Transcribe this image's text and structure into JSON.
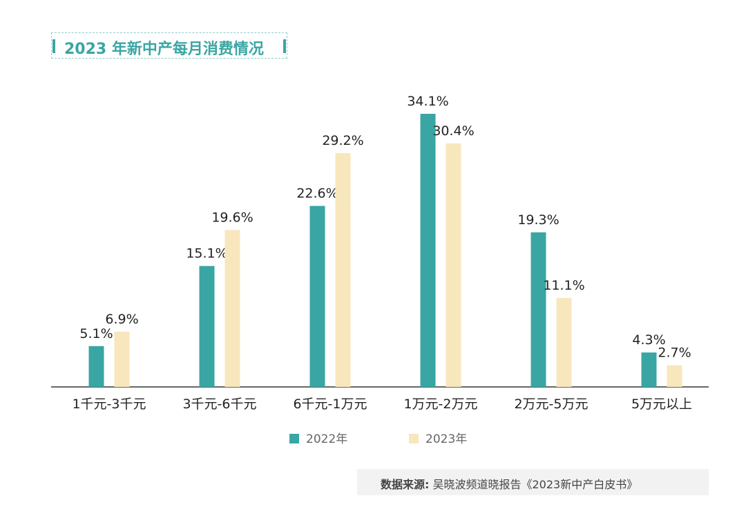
{
  "title": "2023 年新中产每月消费情况",
  "source": {
    "label": "数据来源:",
    "text": "吴晓波频道晓报告《2023新中产白皮书》"
  },
  "colors": {
    "series_2022": "#3aa6a3",
    "series_2023": "#f8e6bd",
    "axis": "#333333"
  },
  "chart_data": {
    "type": "bar",
    "categories": [
      "1千元-3千元",
      "3千元-6千元",
      "6千元-1万元",
      "1万元-2万元",
      "2万元-5万元",
      "5万元以上"
    ],
    "series": [
      {
        "name": "2022年",
        "values": [
          5.1,
          15.1,
          22.6,
          34.1,
          19.3,
          4.3
        ],
        "labels": [
          "5.1%",
          "15.1%",
          "22.6%",
          "34.1%",
          "19.3%",
          "4.3%"
        ]
      },
      {
        "name": "2023年",
        "values": [
          6.9,
          19.6,
          29.2,
          30.4,
          11.1,
          2.7
        ],
        "labels": [
          "6.9%",
          "19.6%",
          "29.2%",
          "30.4%",
          "11.1%",
          "2.7%"
        ]
      }
    ],
    "ylim": [
      0,
      34.1
    ],
    "grid": false,
    "legend": "bottom-center"
  }
}
